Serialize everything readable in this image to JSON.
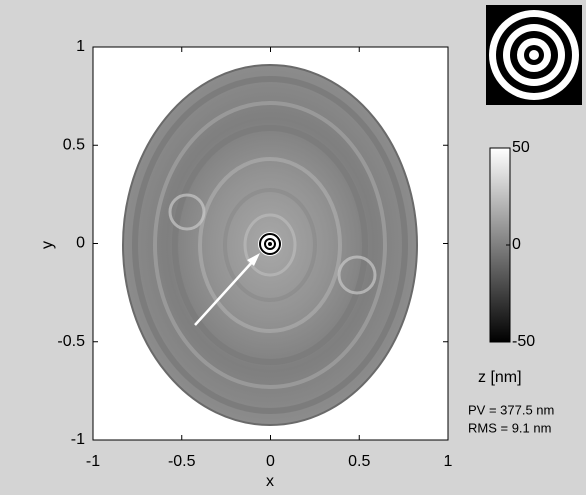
{
  "chart_data": {
    "type": "image",
    "x_label": "x",
    "y_label": "y",
    "xlim": [
      -1,
      1
    ],
    "xticks": [
      -1,
      -0.5,
      0,
      0.5,
      1
    ],
    "ylim": [
      -1,
      1
    ],
    "yticks": [
      -1,
      -0.5,
      0,
      0.5,
      1
    ],
    "colormap": [
      "#000000",
      "#ffffff"
    ],
    "colorbar": {
      "lim": [
        -50,
        50
      ],
      "ticks": [
        -50,
        0,
        50
      ],
      "label": "z [nm]"
    },
    "annotations": [
      "PV = 377.5 nm",
      "RMS = 9.1 nm"
    ]
  }
}
